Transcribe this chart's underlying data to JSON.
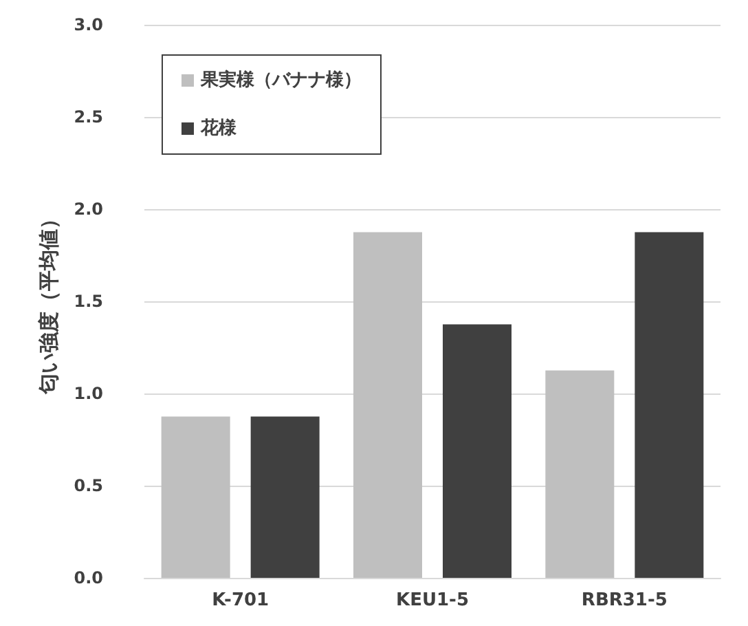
{
  "chart_data": {
    "type": "bar",
    "ylabel": "匂い強度（平均値）",
    "categories": [
      "K-701",
      "KEU1-5",
      "RBR31-5"
    ],
    "series": [
      {
        "name": "果実様（バナナ様）",
        "color": "#bfbfbf",
        "values": [
          0.875,
          1.875,
          1.125
        ]
      },
      {
        "name": "花様",
        "color": "#404040",
        "values": [
          0.875,
          1.375,
          1.875
        ]
      }
    ],
    "ylim": [
      0,
      3
    ],
    "yticks": [
      {
        "value": 0,
        "label": "0.0"
      },
      {
        "value": 0.5,
        "label": "0.5"
      },
      {
        "value": 1,
        "label": "1.0"
      },
      {
        "value": 1.5,
        "label": "1.5"
      },
      {
        "value": 2,
        "label": "2.0"
      },
      {
        "value": 2.5,
        "label": "2.5"
      },
      {
        "value": 3,
        "label": "3.0"
      }
    ],
    "grid": "y",
    "legend": "top left"
  }
}
